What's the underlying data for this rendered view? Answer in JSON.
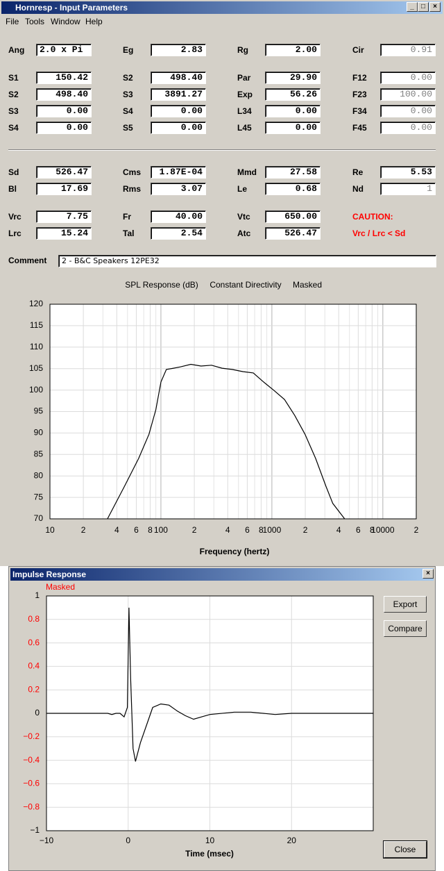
{
  "window": {
    "title": "Hornresp - Input Parameters"
  },
  "menu": [
    "File",
    "Tools",
    "Window",
    "Help"
  ],
  "params": {
    "rows": [
      [
        {
          "label": "Ang",
          "value": "2.0 x Pi",
          "align": "left"
        },
        {
          "label": "Eg",
          "value": "2.83"
        },
        {
          "label": "Rg",
          "value": "2.00"
        },
        {
          "label": "Cir",
          "value": "0.91",
          "disabled": true
        }
      ],
      [
        {
          "label": "S1",
          "value": "150.42"
        },
        {
          "label": "S2",
          "value": "498.40"
        },
        {
          "label": "Par",
          "value": "29.90"
        },
        {
          "label": "F12",
          "value": "0.00",
          "disabled": true
        }
      ],
      [
        {
          "label": "S2",
          "value": "498.40"
        },
        {
          "label": "S3",
          "value": "3891.27"
        },
        {
          "label": "Exp",
          "value": "56.26"
        },
        {
          "label": "F23",
          "value": "100.00",
          "disabled": true
        }
      ],
      [
        {
          "label": "S3",
          "value": "0.00"
        },
        {
          "label": "S4",
          "value": "0.00"
        },
        {
          "label": "L34",
          "value": "0.00"
        },
        {
          "label": "F34",
          "value": "0.00",
          "disabled": true
        }
      ],
      [
        {
          "label": "S4",
          "value": "0.00"
        },
        {
          "label": "S5",
          "value": "0.00"
        },
        {
          "label": "L45",
          "value": "0.00"
        },
        {
          "label": "F45",
          "value": "0.00",
          "disabled": true
        }
      ],
      [
        {
          "label": "Sd",
          "value": "526.47"
        },
        {
          "label": "Cms",
          "value": "1.87E-04"
        },
        {
          "label": "Mmd",
          "value": "27.58"
        },
        {
          "label": "Re",
          "value": "5.53"
        }
      ],
      [
        {
          "label": "Bl",
          "value": "17.69"
        },
        {
          "label": "Rms",
          "value": "3.07"
        },
        {
          "label": "Le",
          "value": "0.68"
        },
        {
          "label": "Nd",
          "value": "1",
          "disabled": true
        }
      ],
      [
        {
          "label": "Vrc",
          "value": "7.75"
        },
        {
          "label": "Fr",
          "value": "40.00"
        },
        {
          "label": "Vtc",
          "value": "650.00"
        }
      ],
      [
        {
          "label": "Lrc",
          "value": "15.24"
        },
        {
          "label": "Tal",
          "value": "2.54"
        },
        {
          "label": "Atc",
          "value": "526.47"
        }
      ]
    ],
    "caution": {
      "title": "CAUTION:",
      "message": "Vrc / Lrc < Sd",
      "color": "#ff0000"
    }
  },
  "comment": {
    "label": "Comment",
    "value": "2 - B&C Speakers 12PE32"
  },
  "buttons": [
    "Export",
    "Compare",
    "Close"
  ],
  "chart_data": [
    {
      "type": "line",
      "title": "SPL Response (dB)",
      "annotations": [
        "Constant Directivity",
        "Masked"
      ],
      "xlabel": "Frequency (hertz)",
      "xscale": "log",
      "x": [
        33,
        47,
        63,
        78,
        90,
        100,
        112,
        130,
        150,
        186,
        230,
        286,
        355,
        438,
        546,
        680,
        841,
        1046,
        1300,
        1606,
        1990,
        2477,
        3070,
        3540,
        4530
      ],
      "series": [
        {
          "color": "#000000",
          "values": [
            70,
            77.6,
            84.1,
            89.7,
            95.4,
            101.9,
            104.8,
            105.1,
            105.4,
            106,
            105.6,
            105.8,
            105.1,
            104.8,
            104.3,
            104,
            101.9,
            99.9,
            97.8,
            94.1,
            89.7,
            84.1,
            77.6,
            73.6,
            70
          ]
        }
      ],
      "xlim": [
        10,
        20000
      ],
      "ylim": [
        70,
        120
      ],
      "xticks": [
        10,
        {
          "value": 20,
          "label": "2"
        },
        {
          "value": 40,
          "label": "4"
        },
        {
          "value": 60,
          "label": "6"
        },
        {
          "value": 80,
          "label": "8"
        },
        100,
        {
          "value": 200,
          "label": "2"
        },
        {
          "value": 400,
          "label": "4"
        },
        {
          "value": 600,
          "label": "6"
        },
        {
          "value": 800,
          "label": "8"
        },
        1000,
        {
          "value": 2000,
          "label": "2"
        },
        {
          "value": 4000,
          "label": "4"
        },
        {
          "value": 6000,
          "label": "6"
        },
        {
          "value": 8000,
          "label": "8"
        },
        10000,
        {
          "value": 20000,
          "label": "2"
        }
      ],
      "minor_xticks": [
        30,
        50,
        70,
        90,
        300,
        500,
        700,
        900,
        3000,
        5000,
        7000,
        9000
      ],
      "yticks": [
        70,
        75,
        80,
        85,
        90,
        95,
        100,
        105,
        110,
        115,
        120
      ],
      "grid": true
    },
    {
      "type": "line",
      "title": "Impulse Response",
      "annotations": [
        "Masked"
      ],
      "annotation_color": "#ff0000",
      "xlabel": "Time (msec)",
      "x": [
        -10,
        -2.5,
        -2,
        -1.5,
        -1,
        -0.5,
        -0.1,
        0,
        0.1,
        0.3,
        0.6,
        0.9,
        1.5,
        2.5,
        3,
        4,
        5,
        6,
        7,
        8,
        9,
        10,
        13,
        15,
        18,
        20,
        30
      ],
      "series": [
        {
          "color": "#000000",
          "values": [
            0,
            0,
            -0.01,
            0,
            0,
            -0.03,
            0.05,
            0.5,
            0.9,
            0.3,
            -0.3,
            -0.41,
            -0.25,
            -0.05,
            0.05,
            0.08,
            0.07,
            0.02,
            -0.02,
            -0.05,
            -0.03,
            -0.01,
            0.01,
            0.01,
            -0.01,
            0,
            0
          ]
        }
      ],
      "xlim": [
        -10,
        30
      ],
      "ylim": [
        -1,
        1
      ],
      "xticks": [
        {
          "value": -10,
          "label": "−10"
        },
        0,
        10,
        20
      ],
      "yticks": [
        1,
        0.8,
        0.6,
        0.4,
        0.2,
        0,
        {
          "value": -0.2,
          "label": "−0.2"
        },
        {
          "value": -0.4,
          "label": "−0.4"
        },
        {
          "value": -0.6,
          "label": "−0.6"
        },
        {
          "value": -0.8,
          "label": "−0.8"
        },
        {
          "value": -1,
          "label": "−1"
        }
      ],
      "fraction_tick_color": "#ff0000",
      "grid": true
    }
  ]
}
